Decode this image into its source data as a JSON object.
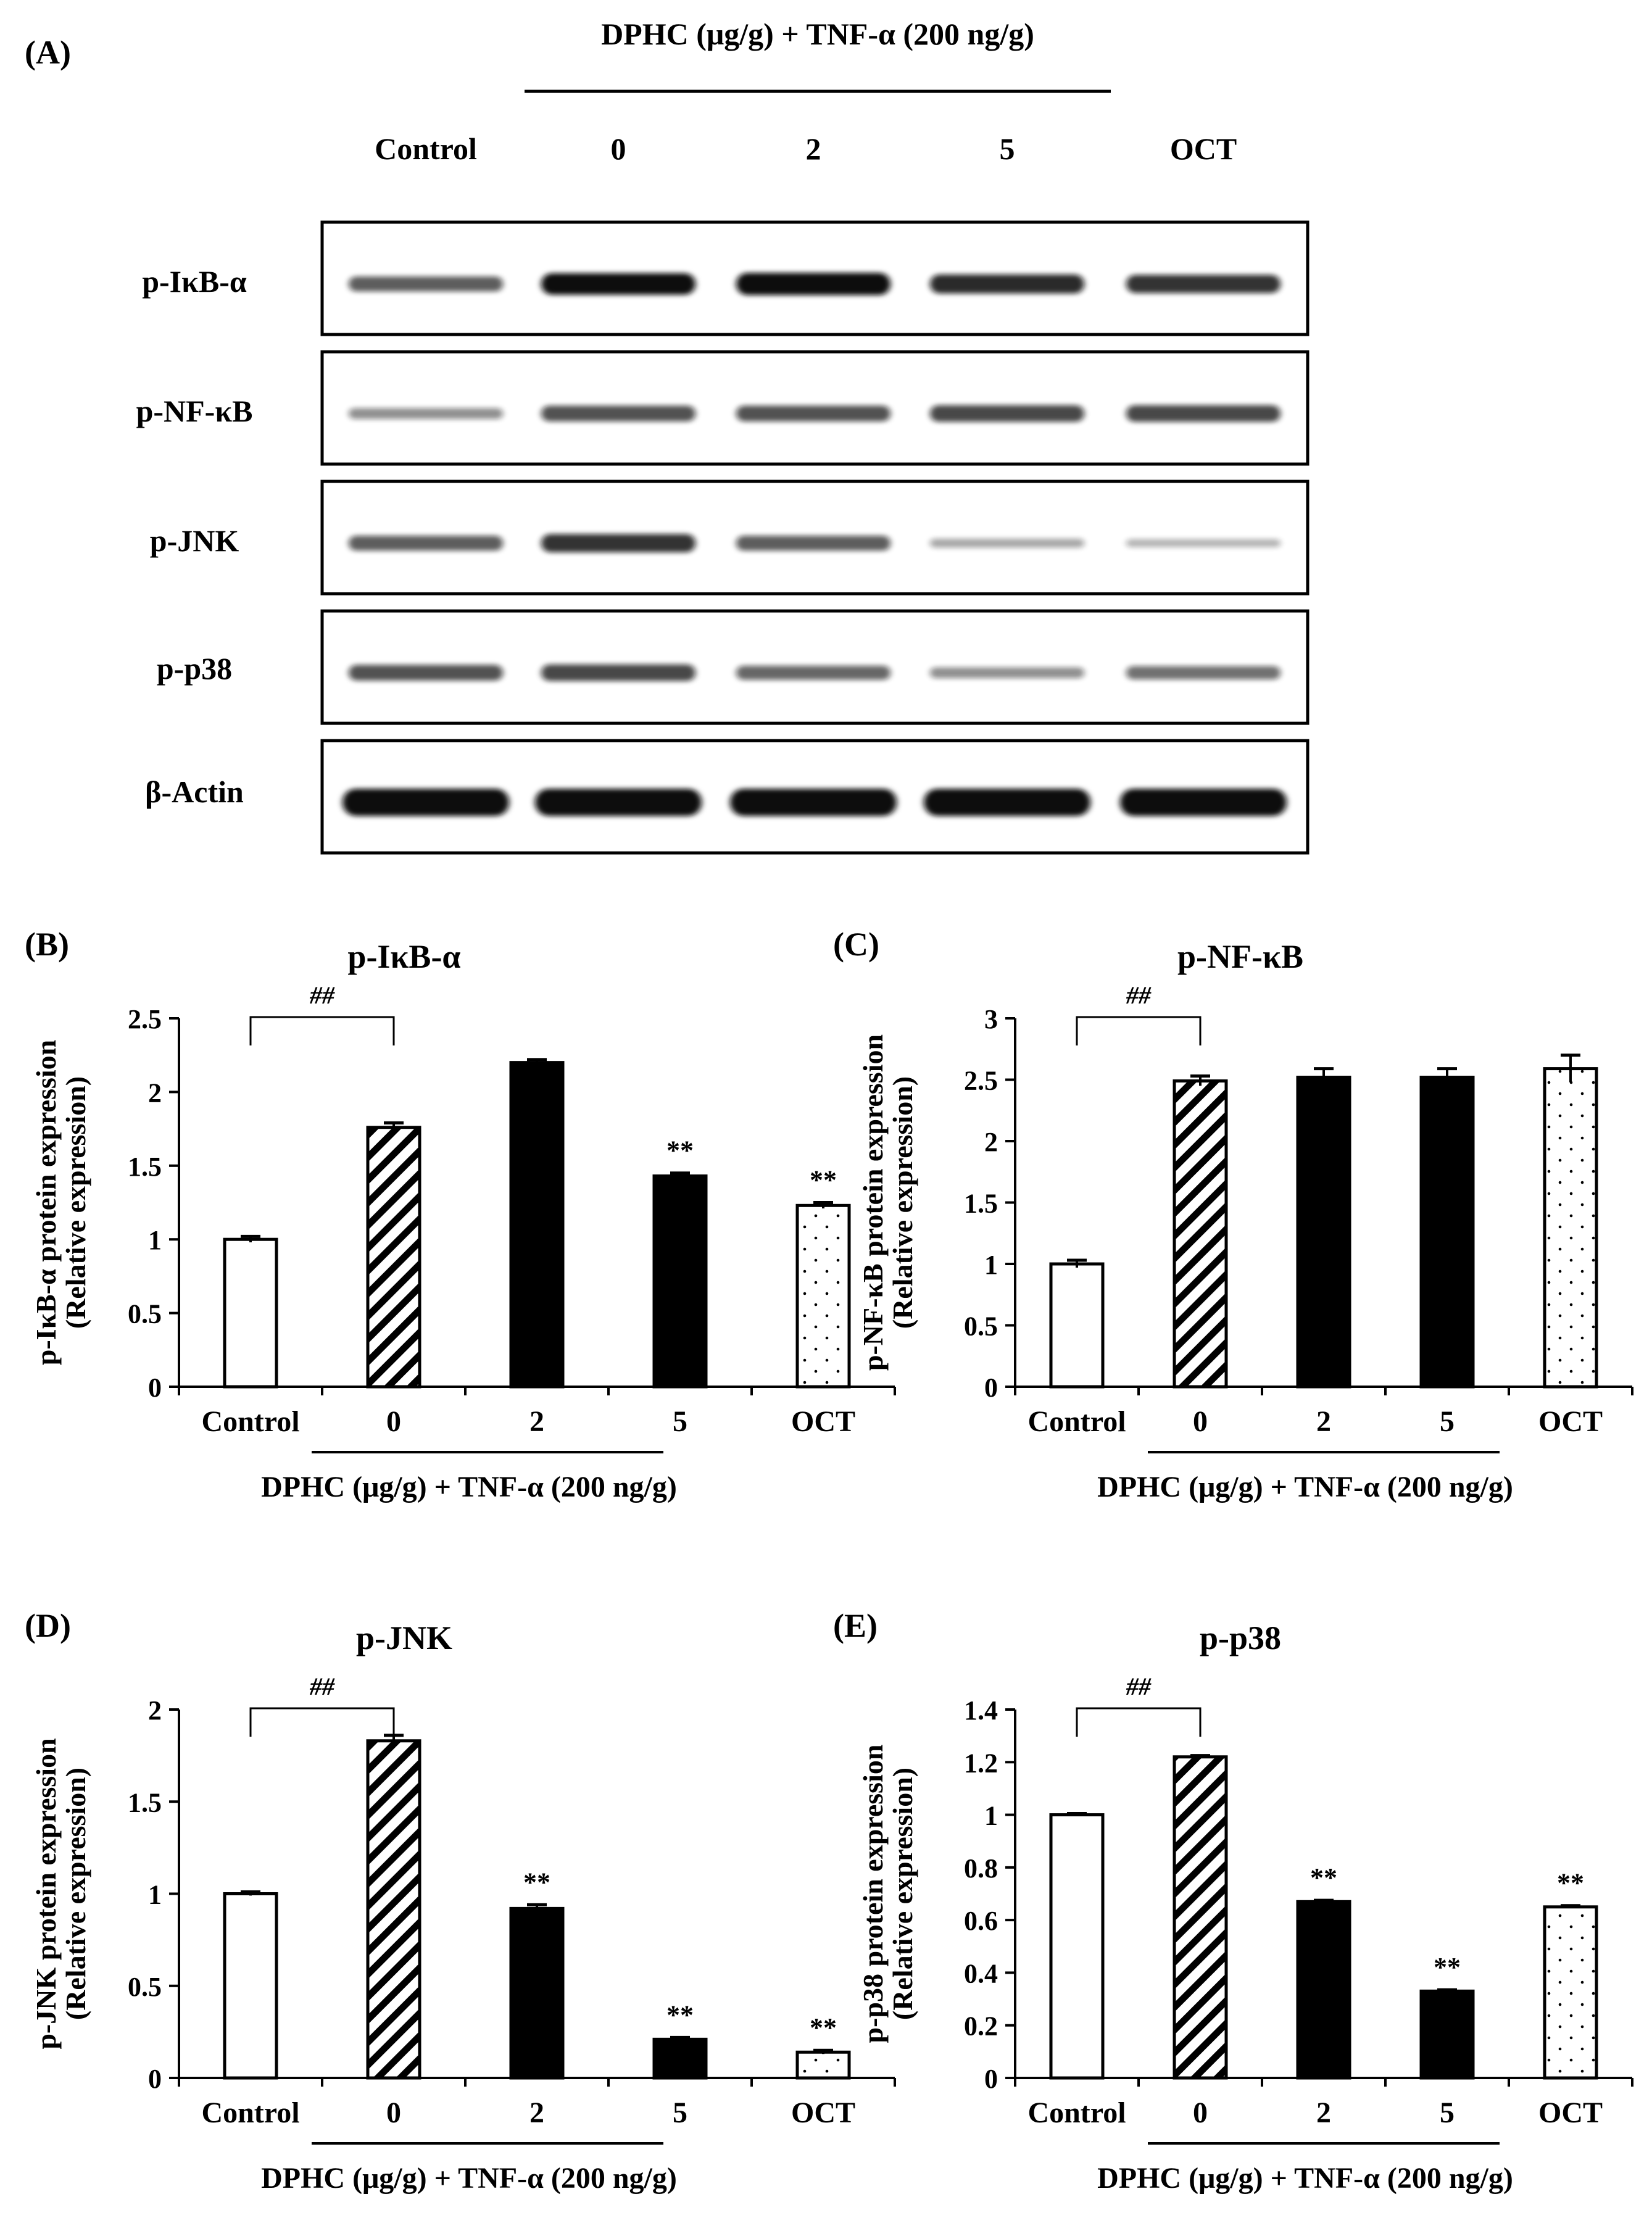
{
  "colors": {
    "ink": "#000000",
    "paper": "#ffffff",
    "band_dark": "#111111",
    "band_light": "#8a8a8a"
  },
  "western_blot": {
    "panel_label": "(A)",
    "header": "DPHC (μg/g) + TNF-α (200 ng/g)",
    "lanes": [
      "Control",
      "0",
      "2",
      "5",
      "OCT"
    ],
    "rows": [
      {
        "label": "p-IκB-α",
        "intensities": [
          0.55,
          0.95,
          1.0,
          0.8,
          0.75
        ]
      },
      {
        "label": "p-NF-κB",
        "intensities": [
          0.3,
          0.6,
          0.6,
          0.65,
          0.65
        ]
      },
      {
        "label": "p-JNK",
        "intensities": [
          0.55,
          0.75,
          0.55,
          0.18,
          0.12
        ]
      },
      {
        "label": "p-p38",
        "intensities": [
          0.6,
          0.65,
          0.5,
          0.3,
          0.45
        ]
      },
      {
        "label": "β-Actin",
        "intensities": [
          1.0,
          1.0,
          1.0,
          1.0,
          1.0
        ]
      }
    ]
  },
  "chart_data": [
    {
      "panel_label": "(B)",
      "type": "bar",
      "title": "p-IκB-α",
      "ylabel_line1": "p-IκB-α  protein expression",
      "ylabel_line2": "(Relative expression)",
      "xlabel": "DPHC (μg/g) + TNF-α (200 ng/g)",
      "categories": [
        "Control",
        "0",
        "2",
        "5",
        "OCT"
      ],
      "values": [
        1.0,
        1.76,
        2.2,
        1.43,
        1.23
      ],
      "errors": [
        0.02,
        0.03,
        0.02,
        0.02,
        0.02
      ],
      "fills": [
        "white",
        "hatch",
        "black",
        "black",
        "dots"
      ],
      "annotations": [
        "",
        "",
        "",
        "**",
        "**"
      ],
      "comparison": {
        "from": 0,
        "to": 1,
        "label": "##"
      },
      "ylim": [
        0,
        2.5
      ],
      "yticks": [
        0,
        0.5,
        1,
        1.5,
        2,
        2.5
      ],
      "ytick_labels": [
        "0",
        "0.5",
        "1",
        "1.5",
        "2",
        "2.5"
      ]
    },
    {
      "panel_label": "(C)",
      "type": "bar",
      "title": "p-NF-κB",
      "ylabel_line1": "p-NF-κB protein expression",
      "ylabel_line2": "(Relative expression)",
      "xlabel": "DPHC (μg/g)  + TNF-α (200 ng/g)",
      "categories": [
        "Control",
        "0",
        "2",
        "5",
        "OCT"
      ],
      "values": [
        1.0,
        2.49,
        2.52,
        2.52,
        2.59
      ],
      "errors": [
        0.03,
        0.04,
        0.07,
        0.07,
        0.11
      ],
      "fills": [
        "white",
        "hatch",
        "black",
        "black",
        "dots"
      ],
      "annotations": [
        "",
        "",
        "",
        "",
        ""
      ],
      "comparison": {
        "from": 0,
        "to": 1,
        "label": "##"
      },
      "ylim": [
        0,
        3
      ],
      "yticks": [
        0,
        0.5,
        1,
        1.5,
        2,
        2.5,
        3
      ],
      "ytick_labels": [
        "0",
        "0.5",
        "1",
        "1.5",
        "2",
        "2.5",
        "3"
      ]
    },
    {
      "panel_label": "(D)",
      "type": "bar",
      "title": "p-JNK",
      "ylabel_line1": "p-JNK protein expression",
      "ylabel_line2": "(Relative expression)",
      "xlabel": "DPHC (μg/g) + TNF-α (200 ng/g)",
      "categories": [
        "Control",
        "0",
        "2",
        "5",
        "OCT"
      ],
      "values": [
        1.0,
        1.83,
        0.92,
        0.21,
        0.14
      ],
      "errors": [
        0.01,
        0.03,
        0.02,
        0.01,
        0.01
      ],
      "fills": [
        "white",
        "hatch",
        "black",
        "black",
        "dots"
      ],
      "annotations": [
        "",
        "",
        "**",
        "**",
        "**"
      ],
      "comparison": {
        "from": 0,
        "to": 1,
        "label": "##"
      },
      "ylim": [
        0,
        2
      ],
      "yticks": [
        0,
        0.5,
        1,
        1.5,
        2
      ],
      "ytick_labels": [
        "0",
        "0.5",
        "1",
        "1.5",
        "2"
      ]
    },
    {
      "panel_label": "(E)",
      "type": "bar",
      "title": "p-p38",
      "ylabel_line1": "p-p38 protein expression",
      "ylabel_line2": "(Relative expression)",
      "xlabel": "DPHC (μg/g) + TNF-α (200 ng/g)",
      "categories": [
        "Control",
        "0",
        "2",
        "5",
        "OCT"
      ],
      "values": [
        1.0,
        1.22,
        0.67,
        0.33,
        0.65
      ],
      "errors": [
        0.005,
        0.005,
        0.005,
        0.005,
        0.005
      ],
      "fills": [
        "white",
        "hatch",
        "black",
        "black",
        "dots"
      ],
      "annotations": [
        "",
        "",
        "**",
        "**",
        "**"
      ],
      "comparison": {
        "from": 0,
        "to": 1,
        "label": "##"
      },
      "ylim": [
        0,
        1.4
      ],
      "yticks": [
        0,
        0.2,
        0.4,
        0.6,
        0.8,
        1,
        1.2,
        1.4
      ],
      "ytick_labels": [
        "0",
        "0.2",
        "0.4",
        "0.6",
        "0.8",
        "1",
        "1.2",
        "1.4"
      ]
    }
  ]
}
